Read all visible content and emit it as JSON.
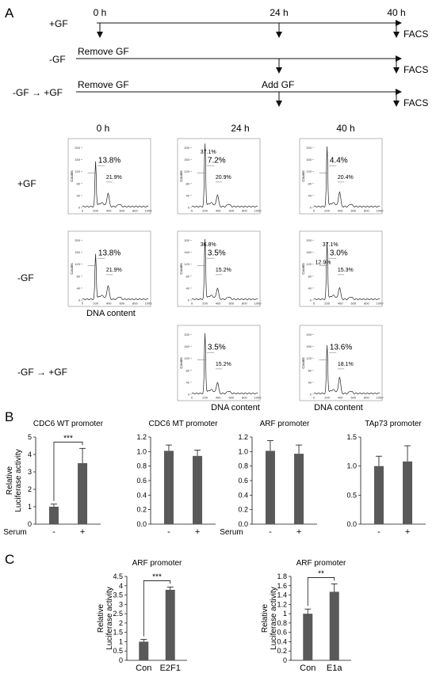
{
  "panel_labels": {
    "a": "A",
    "b": "B",
    "c": "C"
  },
  "timeline": {
    "times": [
      "0 h",
      "24 h",
      "40 h"
    ],
    "rows": [
      {
        "condition": "+GF",
        "start_label": "",
        "mid_label": "",
        "end_label": "FACS"
      },
      {
        "condition": "-GF",
        "start_label": "Remove GF",
        "mid_label": "",
        "end_label": "FACS"
      },
      {
        "condition": "-GF → +GF",
        "start_label": "Remove GF",
        "mid_label": "Add GF",
        "end_label": "FACS"
      }
    ]
  },
  "facs": {
    "columns": [
      "0 h",
      "24 h",
      "40 h"
    ],
    "row_labels": [
      "+GF",
      "-GF",
      "-GF → +GF"
    ],
    "y_axis_label": "Counts",
    "y_ticks": [
      "0",
      "40",
      "80",
      "120",
      "160",
      "200"
    ],
    "x_ticks": [
      "0",
      "200",
      "400",
      "600",
      "800",
      "1000"
    ],
    "x_label": "DNA content",
    "panels": [
      {
        "row": 0,
        "col": 0,
        "g1": "",
        "s": "13.8%",
        "g2m": "21.9%",
        "g1_height": 150,
        "peak_g2": 46
      },
      {
        "row": 0,
        "col": 1,
        "g1": "37.1%",
        "s": "7.2%",
        "g2m": "20.9%",
        "g1_height": 210,
        "peak_g2": 40
      },
      {
        "row": 0,
        "col": 2,
        "g1": "",
        "s": "4.4%",
        "g2m": "20.4%",
        "g1_height": 200,
        "peak_g2": 50
      },
      {
        "row": 1,
        "col": 0,
        "g1": "",
        "s": "13.8%",
        "g2m": "21.9%",
        "g1_height": 150,
        "peak_g2": 46
      },
      {
        "row": 1,
        "col": 1,
        "g1": "36.8%",
        "s": "3.5%",
        "g2m": "15.2%",
        "g1_height": 200,
        "peak_g2": 38
      },
      {
        "row": 1,
        "col": 2,
        "g1": "37.1%",
        "s": "3.0%",
        "g2m": "15.3%",
        "extra": "12.9%",
        "g1_height": 190,
        "peak_g2": 40
      },
      {
        "row": 2,
        "col": 1,
        "g1": "",
        "s": "3.5%",
        "g2m": "15.2%",
        "g1_height": 200,
        "peak_g2": 38
      },
      {
        "row": 2,
        "col": 2,
        "g1": "",
        "s": "13.6%",
        "g2m": "18.1%",
        "g1_height": 160,
        "peak_g2": 55
      }
    ]
  },
  "chart_data": [
    {
      "type": "bar",
      "title": "CDC6 WT promoter",
      "ylabel": "Relative Luciferase activity",
      "xlabel": "Serum",
      "categories": [
        "-",
        "+"
      ],
      "values": [
        1.0,
        3.5
      ],
      "errors": [
        0.15,
        0.85
      ],
      "ylim": [
        0,
        5
      ],
      "yticks": [
        "0",
        "1",
        "2",
        "3",
        "4",
        "5"
      ],
      "significance": "***",
      "color": "#595959"
    },
    {
      "type": "bar",
      "title": "CDC6 MT promoter",
      "ylabel": "",
      "xlabel": "",
      "categories": [
        "-",
        "+"
      ],
      "values": [
        1.01,
        0.94
      ],
      "errors": [
        0.08,
        0.08
      ],
      "ylim": [
        0,
        1.2
      ],
      "yticks": [
        "0.0",
        "0.2",
        "0.4",
        "0.6",
        "0.8",
        "1.0",
        "1.2"
      ],
      "significance": "",
      "color": "#595959"
    },
    {
      "type": "bar",
      "title": "ARF promoter",
      "ylabel": "",
      "xlabel": "Serum",
      "categories": [
        "-",
        "+"
      ],
      "values": [
        1.01,
        0.97
      ],
      "errors": [
        0.14,
        0.12
      ],
      "ylim": [
        0,
        1.2
      ],
      "yticks": [
        "0.0",
        "0.2",
        "0.4",
        "0.6",
        "0.8",
        "1.0",
        "1.2"
      ],
      "significance": "",
      "color": "#595959"
    },
    {
      "type": "bar",
      "title": "TAp73 promoter",
      "ylabel": "",
      "xlabel": "",
      "categories": [
        "-",
        "+"
      ],
      "values": [
        1.0,
        1.08
      ],
      "errors": [
        0.17,
        0.27
      ],
      "ylim": [
        0,
        1.5
      ],
      "yticks": [
        "0.0",
        "0.5",
        "1.0",
        "1.5"
      ],
      "significance": "",
      "color": "#595959"
    },
    {
      "type": "bar",
      "title": "ARF promoter",
      "ylabel": "Relative Luciferase activity",
      "xlabel": "",
      "categories": [
        "Con",
        "E2F1"
      ],
      "values": [
        1.0,
        3.78
      ],
      "errors": [
        0.12,
        0.15
      ],
      "ylim": [
        0,
        4.5
      ],
      "yticks": [
        "0",
        "0.5",
        "1",
        "1.5",
        "2",
        "2.5",
        "3",
        "3.5",
        "4",
        "4.5"
      ],
      "significance": "***",
      "color": "#595959"
    },
    {
      "type": "bar",
      "title": "ARF promoter",
      "ylabel": "Relative Luciferase activity",
      "xlabel": "",
      "categories": [
        "Con",
        "E1a"
      ],
      "values": [
        1.0,
        1.47
      ],
      "errors": [
        0.1,
        0.17
      ],
      "ylim": [
        0,
        1.8
      ],
      "yticks": [
        "0",
        "0.2",
        "0.4",
        "0.6",
        "0.8",
        "1",
        "1.2",
        "1.4",
        "1.6",
        "1.8"
      ],
      "significance": "**",
      "color": "#595959"
    }
  ]
}
